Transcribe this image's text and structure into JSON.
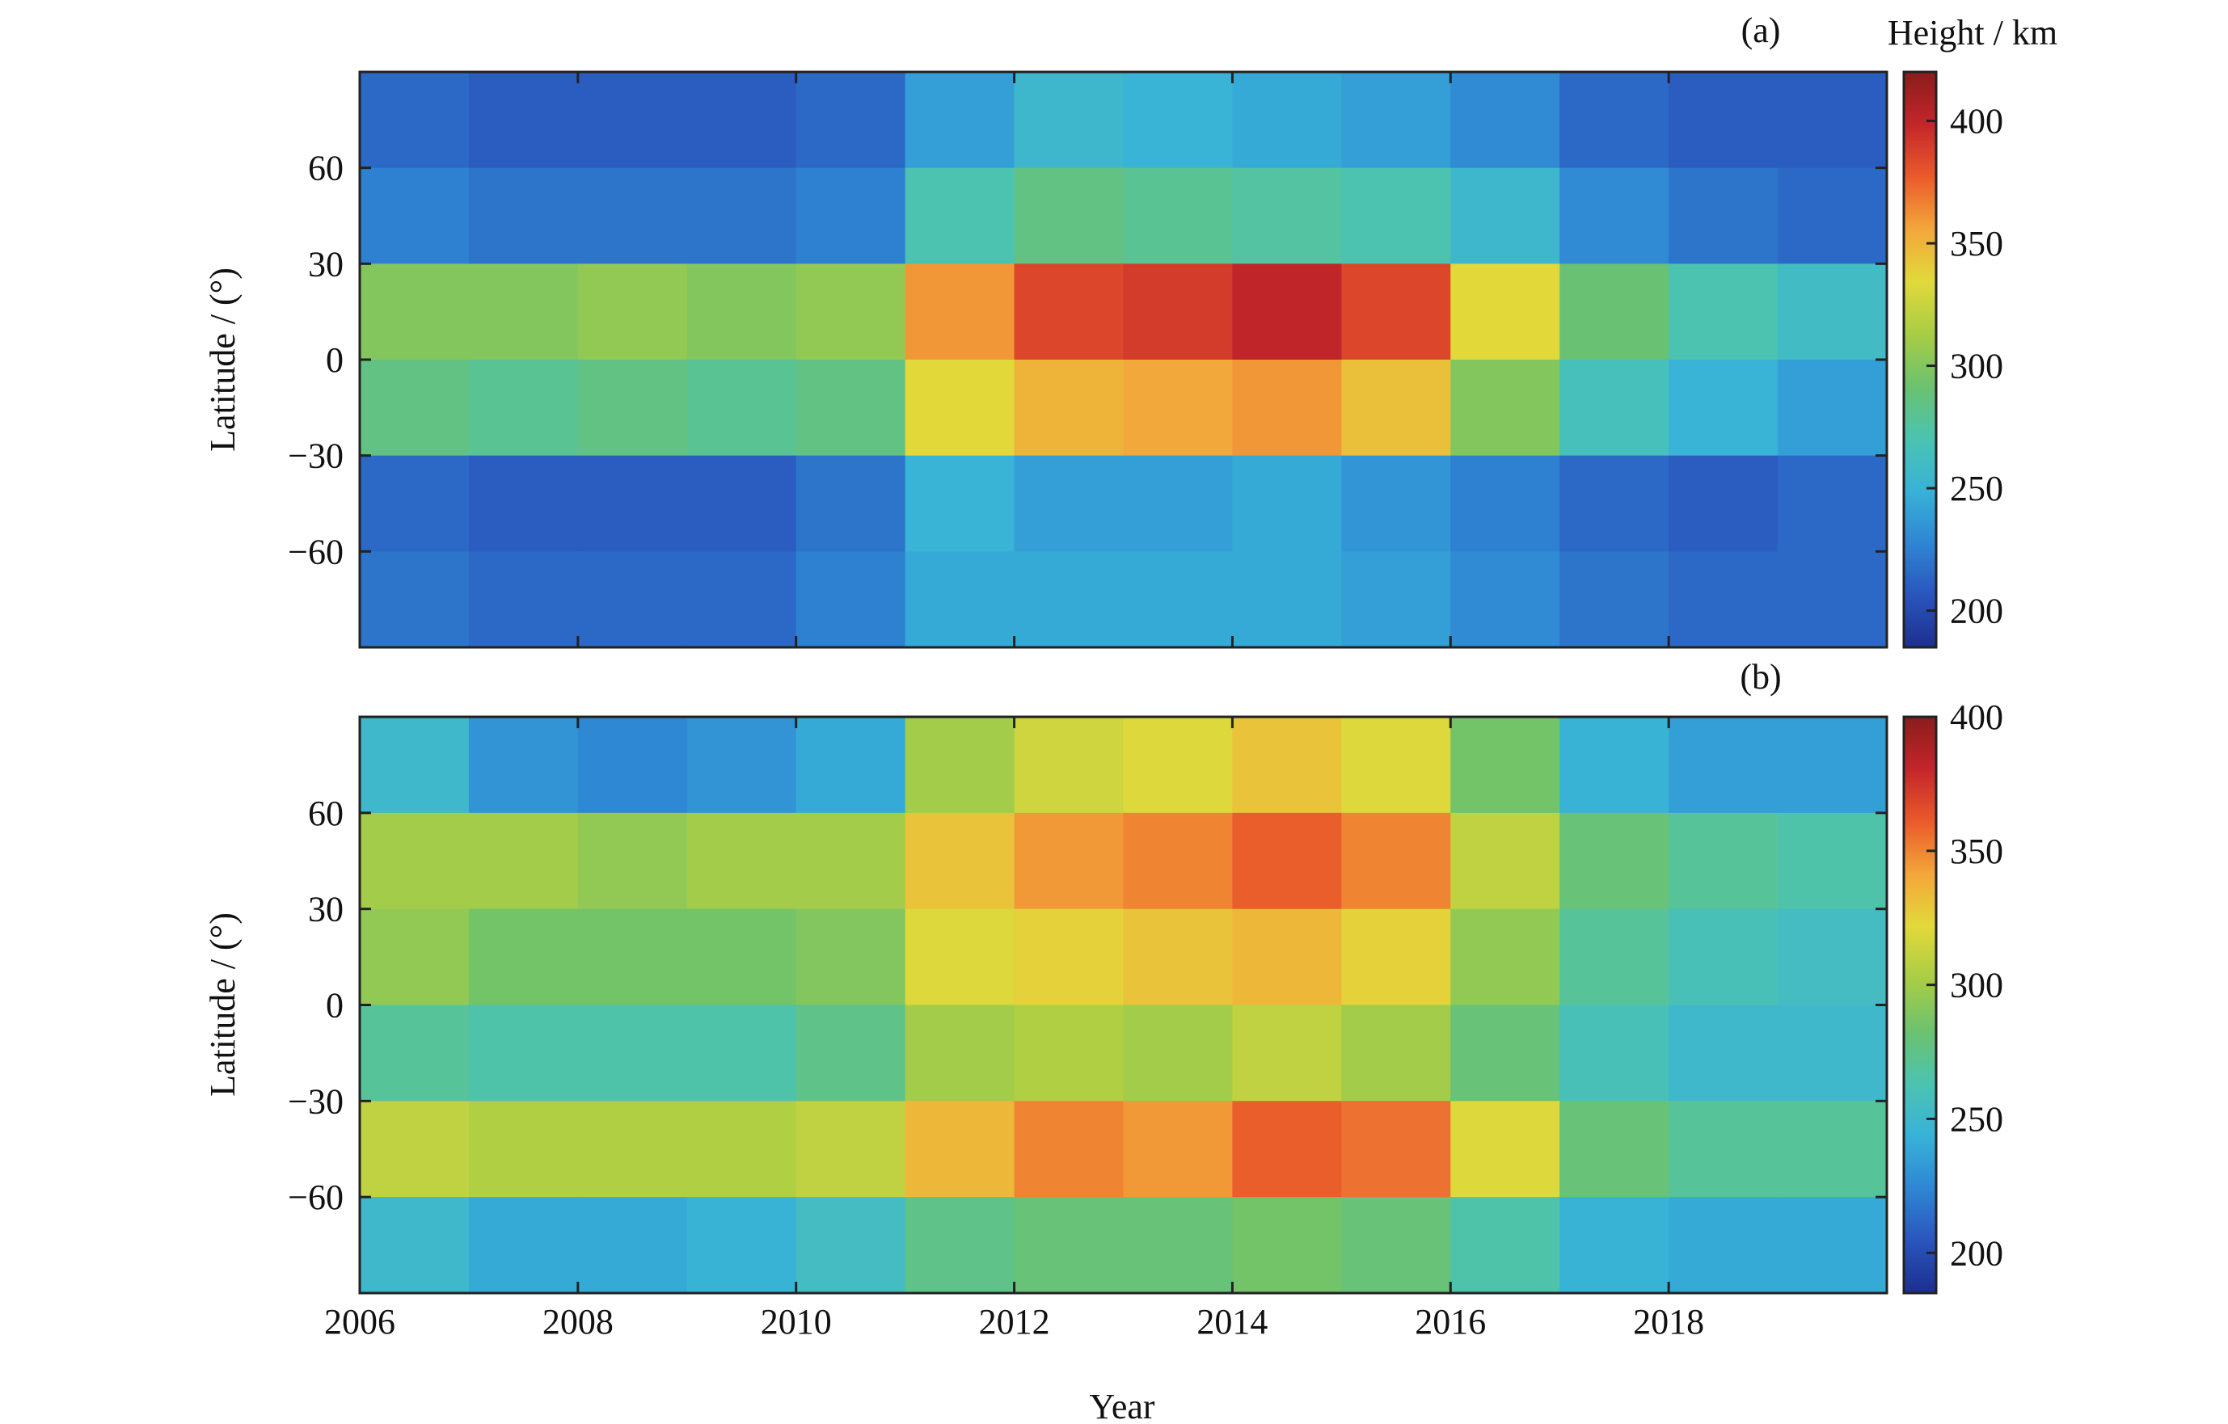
{
  "figure": {
    "xlabel": "Year",
    "ylabel": "Latitude / (°)",
    "colorbar_title": "Height / km"
  },
  "colormap": [
    "#1c2f8f",
    "#2a55bd",
    "#2f86d3",
    "#38b2d8",
    "#4cc3b0",
    "#6cc26e",
    "#a9cd45",
    "#e2d93a",
    "#f3a63a",
    "#ea5a2b",
    "#c3262a",
    "#8a1c1c"
  ],
  "chart_data": [
    {
      "type": "heatmap",
      "panel_label": "(a)",
      "x": {
        "label": "Year",
        "range": [
          2006,
          2020
        ],
        "ticks": [
          2006,
          2008,
          2010,
          2012,
          2014,
          2016,
          2018
        ]
      },
      "y": {
        "label": "Latitude / (°)",
        "range": [
          -90,
          90
        ],
        "ticks": [
          -60,
          -30,
          0,
          30,
          60
        ]
      },
      "colorbar": {
        "title": "Height / km",
        "range": [
          185,
          420
        ],
        "ticks": [
          200,
          250,
          300,
          350,
          400
        ]
      },
      "grid": {
        "years": [
          2006.5,
          2007.5,
          2008.5,
          2009.5,
          2010.5,
          2011.5,
          2012.5,
          2013.5,
          2014.5,
          2015.5,
          2016.5,
          2017.5,
          2018.5,
          2019.5
        ],
        "latitudes": [
          75,
          45,
          15,
          -15,
          -45,
          -75
        ],
        "values": [
          [
            215,
            210,
            210,
            210,
            215,
            240,
            255,
            250,
            245,
            240,
            230,
            215,
            210,
            210
          ],
          [
            225,
            220,
            220,
            220,
            225,
            270,
            285,
            280,
            275,
            270,
            255,
            230,
            220,
            215
          ],
          [
            300,
            300,
            305,
            300,
            305,
            360,
            385,
            390,
            400,
            385,
            335,
            290,
            270,
            260
          ],
          [
            285,
            280,
            285,
            280,
            285,
            335,
            350,
            355,
            360,
            345,
            300,
            265,
            250,
            240
          ],
          [
            215,
            210,
            210,
            210,
            220,
            250,
            240,
            240,
            245,
            235,
            225,
            215,
            210,
            215
          ],
          [
            220,
            215,
            215,
            215,
            225,
            245,
            245,
            245,
            245,
            240,
            230,
            220,
            215,
            215
          ]
        ]
      }
    },
    {
      "type": "heatmap",
      "panel_label": "(b)",
      "x": {
        "label": "Year",
        "range": [
          2006,
          2020
        ],
        "ticks": [
          2006,
          2008,
          2010,
          2012,
          2014,
          2016,
          2018
        ]
      },
      "y": {
        "label": "Latitude / (°)",
        "range": [
          -90,
          90
        ],
        "ticks": [
          -60,
          -30,
          0,
          30,
          60
        ]
      },
      "colorbar": {
        "title": "",
        "range": [
          185,
          400
        ],
        "ticks": [
          200,
          250,
          300,
          350,
          400
        ]
      },
      "grid": {
        "years": [
          2006.5,
          2007.5,
          2008.5,
          2009.5,
          2010.5,
          2011.5,
          2012.5,
          2013.5,
          2014.5,
          2015.5,
          2016.5,
          2017.5,
          2018.5,
          2019.5
        ],
        "latitudes": [
          75,
          45,
          15,
          -15,
          -45,
          -75
        ],
        "values": [
          [
            250,
            230,
            225,
            230,
            240,
            300,
            315,
            320,
            330,
            320,
            285,
            245,
            235,
            235
          ],
          [
            300,
            300,
            295,
            300,
            300,
            330,
            345,
            350,
            360,
            350,
            310,
            280,
            270,
            265
          ],
          [
            295,
            285,
            285,
            285,
            290,
            320,
            325,
            330,
            335,
            325,
            295,
            270,
            260,
            255
          ],
          [
            270,
            265,
            265,
            265,
            275,
            300,
            305,
            300,
            310,
            300,
            280,
            260,
            250,
            250
          ],
          [
            310,
            305,
            305,
            305,
            310,
            335,
            350,
            345,
            360,
            355,
            320,
            280,
            270,
            270
          ],
          [
            250,
            240,
            240,
            245,
            255,
            275,
            280,
            280,
            285,
            280,
            265,
            245,
            240,
            240
          ]
        ]
      }
    }
  ]
}
